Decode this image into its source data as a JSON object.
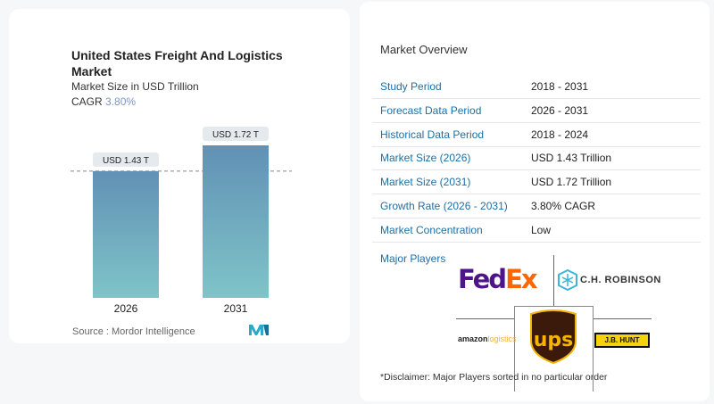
{
  "chart_data": {
    "type": "bar",
    "title": "United States Freight And Logistics Market",
    "subtitle": "Market Size in USD Trillion",
    "cagr_label": "CAGR",
    "cagr_value": "3.80%",
    "categories": [
      "2026",
      "2031"
    ],
    "values": [
      1.43,
      1.72
    ],
    "data_labels": [
      "USD 1.43 T",
      "USD 1.72 T"
    ],
    "ylim": [
      0,
      1.72
    ],
    "reference_line": 1.43,
    "bar_color_top": "#6191b5",
    "bar_color_bottom": "#7fc4c8",
    "source": "Source :  Mordor Intelligence"
  },
  "overview": {
    "title": "Market Overview",
    "rows": [
      {
        "label": "Study Period",
        "value": "2018 - 2031"
      },
      {
        "label": "Forecast Data Period",
        "value": "2026 - 2031"
      },
      {
        "label": "Historical Data Period",
        "value": "2018 - 2024"
      },
      {
        "label": "Market Size (2026)",
        "value": "USD 1.43 Trillion"
      },
      {
        "label": "Market Size (2031)",
        "value": "USD 1.72 Trillion"
      },
      {
        "label": "Growth Rate (2026 - 2031)",
        "value": "3.80% CAGR"
      },
      {
        "label": "Market Concentration",
        "value": "Low"
      }
    ],
    "major_players_label": "Major Players",
    "players": [
      "FedEx",
      "C.H. ROBINSON",
      "UPS",
      "amazon logistics",
      "J.B. HUNT"
    ],
    "disclaimer": "*Disclaimer: Major Players sorted in no particular order"
  }
}
